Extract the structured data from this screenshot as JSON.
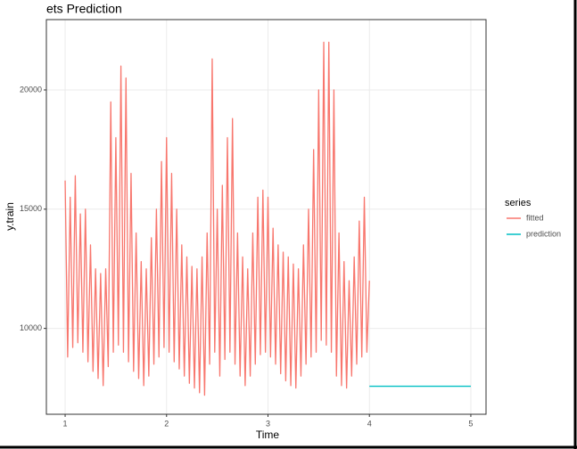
{
  "chart_data": {
    "type": "line",
    "title": "ets Prediction",
    "x_label": "Time",
    "y_label": "y.train",
    "legend_title": "series",
    "xlim": [
      0.815,
      5.15
    ],
    "xticks": [
      1,
      2,
      3,
      4,
      5
    ],
    "ylim": [
      6400,
      22950
    ],
    "yticks": [
      10000,
      15000,
      20000
    ],
    "grid": true,
    "legend": "right",
    "series": [
      {
        "name": "fitted",
        "color": "#F8766D",
        "x": [
          1,
          1.025,
          1.05,
          1.075,
          1.1,
          1.125,
          1.15,
          1.175,
          1.2,
          1.225,
          1.25,
          1.275,
          1.3,
          1.325,
          1.35,
          1.375,
          1.4,
          1.425,
          1.45,
          1.475,
          1.5,
          1.525,
          1.55,
          1.575,
          1.6,
          1.625,
          1.65,
          1.675,
          1.7,
          1.725,
          1.75,
          1.775,
          1.8,
          1.825,
          1.85,
          1.875,
          1.9,
          1.925,
          1.95,
          1.975,
          2,
          2.025,
          2.05,
          2.075,
          2.1,
          2.125,
          2.15,
          2.175,
          2.2,
          2.225,
          2.25,
          2.275,
          2.3,
          2.325,
          2.35,
          2.375,
          2.4,
          2.425,
          2.45,
          2.475,
          2.5,
          2.525,
          2.55,
          2.575,
          2.6,
          2.625,
          2.65,
          2.675,
          2.7,
          2.725,
          2.75,
          2.775,
          2.8,
          2.825,
          2.85,
          2.875,
          2.9,
          2.925,
          2.95,
          2.975,
          3,
          3.025,
          3.05,
          3.075,
          3.1,
          3.125,
          3.15,
          3.175,
          3.2,
          3.225,
          3.25,
          3.275,
          3.3,
          3.325,
          3.35,
          3.375,
          3.4,
          3.425,
          3.45,
          3.475,
          3.5,
          3.525,
          3.55,
          3.575,
          3.6,
          3.625,
          3.65,
          3.675,
          3.7,
          3.725,
          3.75,
          3.775,
          3.8,
          3.825,
          3.85,
          3.875,
          3.9,
          3.925,
          3.95,
          3.975,
          4
        ],
        "values": [
          16200,
          8800,
          15500,
          9200,
          16400,
          9400,
          14800,
          9000,
          15000,
          8600,
          13500,
          8200,
          12500,
          7900,
          12300,
          7600,
          12500,
          8400,
          19500,
          9000,
          18000,
          9300,
          21000,
          9000,
          20500,
          8600,
          16500,
          8200,
          14000,
          7900,
          12800,
          7600,
          12500,
          8000,
          13800,
          8500,
          15000,
          8800,
          17000,
          9200,
          18000,
          9000,
          16500,
          8600,
          15000,
          8300,
          13500,
          8000,
          13000,
          7700,
          12600,
          7500,
          12500,
          7300,
          13000,
          7200,
          14000,
          8500,
          21300,
          9000,
          15000,
          8000,
          16000,
          8700,
          18000,
          9000,
          18800,
          8500,
          14000,
          8000,
          13000,
          7600,
          12500,
          8000,
          14000,
          8500,
          15500,
          8900,
          15800,
          9000,
          15500,
          8800,
          14200,
          8500,
          13500,
          8100,
          13200,
          7800,
          13000,
          7600,
          12700,
          7500,
          12500,
          8000,
          13500,
          8500,
          15000,
          8800,
          17500,
          9000,
          20000,
          9500,
          22000,
          9300,
          22000,
          9000,
          20000,
          8000,
          14000,
          7600,
          12800,
          7500,
          12000,
          8000,
          13000,
          8500,
          14500,
          8800,
          15500,
          9000,
          12000
        ]
      },
      {
        "name": "prediction",
        "color": "#00BFC4",
        "x": [
          4,
          5
        ],
        "values": [
          7575,
          7575
        ]
      }
    ]
  }
}
